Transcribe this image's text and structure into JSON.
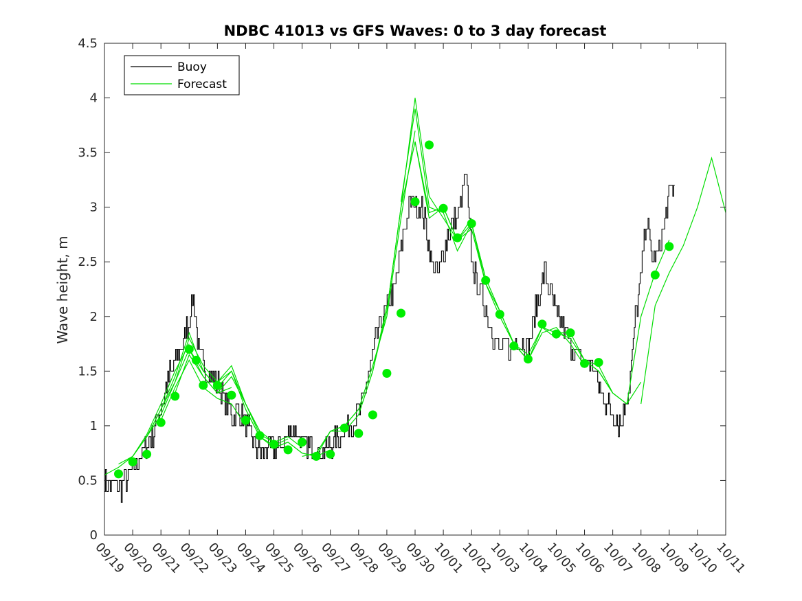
{
  "chart_data": {
    "type": "line",
    "title": "NDBC 41013 vs GFS Waves: 0 to 3 day forecast",
    "xlabel": "",
    "ylabel": "Wave height, m",
    "xlim": [
      0,
      22
    ],
    "ylim": [
      0,
      4.5
    ],
    "x_tick_labels": [
      "09/19",
      "09/20",
      "09/21",
      "09/22",
      "09/23",
      "09/24",
      "09/25",
      "09/26",
      "09/27",
      "09/28",
      "09/29",
      "09/30",
      "10/01",
      "10/02",
      "10/03",
      "10/04",
      "10/05",
      "10/06",
      "10/07",
      "10/08",
      "10/09",
      "10/10",
      "10/11"
    ],
    "y_ticks": [
      0,
      0.5,
      1,
      1.5,
      2,
      2.5,
      3,
      3.5,
      4,
      4.5
    ],
    "y_tick_labels": [
      "0",
      "0.5",
      "1",
      "1.5",
      "2",
      "2.5",
      "3",
      "3.5",
      "4",
      "4.5"
    ],
    "legend": {
      "placement": "top-left",
      "entries": [
        "Buoy",
        "Forecast"
      ]
    },
    "colors": {
      "buoy": "#000000",
      "forecast": "#00dd00",
      "marker": "#00ee00"
    },
    "buoy": {
      "x": [
        0,
        0.3,
        0.5,
        0.7,
        1.0,
        1.2,
        1.5,
        1.8,
        2.0,
        2.2,
        2.5,
        2.8,
        3.0,
        3.15,
        3.3,
        3.5,
        3.7,
        4.0,
        4.3,
        4.5,
        4.8,
        5.0,
        5.3,
        5.5,
        5.8,
        6.0,
        6.3,
        6.6,
        7.0,
        7.3,
        7.6,
        8.0,
        8.3,
        8.6,
        9.0,
        9.3,
        9.6,
        10.0,
        10.3,
        10.6,
        10.8,
        11.0,
        11.2,
        11.4,
        11.6,
        11.8,
        12.0,
        12.2,
        12.5,
        12.8,
        13.0,
        13.3,
        13.6,
        13.8,
        14.0,
        14.2,
        14.4,
        14.6,
        14.8,
        15.0,
        15.3,
        15.6,
        15.8,
        16.0,
        16.3,
        16.6,
        16.8,
        17.0,
        17.3,
        17.6,
        18.0,
        18.3,
        18.6,
        18.8,
        19.0,
        19.1,
        19.2,
        19.4,
        19.6,
        19.8,
        20.0,
        20.2
      ],
      "y": [
        0.5,
        0.45,
        0.4,
        0.5,
        0.6,
        0.7,
        0.8,
        1.0,
        1.15,
        1.4,
        1.6,
        1.75,
        2.0,
        2.2,
        1.7,
        1.55,
        1.45,
        1.4,
        1.2,
        1.1,
        1.15,
        1.0,
        0.85,
        0.75,
        0.8,
        0.75,
        0.85,
        1.0,
        0.85,
        0.8,
        0.75,
        0.8,
        0.9,
        1.0,
        1.1,
        1.4,
        1.8,
        2.1,
        2.3,
        2.8,
        3.0,
        3.05,
        3.0,
        2.8,
        2.5,
        2.4,
        2.6,
        2.8,
        2.9,
        3.3,
        2.5,
        2.2,
        2.0,
        1.8,
        1.7,
        1.75,
        1.65,
        1.8,
        1.75,
        1.7,
        2.1,
        2.4,
        2.2,
        2.0,
        1.85,
        1.7,
        1.65,
        1.6,
        1.55,
        1.3,
        1.1,
        1.0,
        1.4,
        2.0,
        2.4,
        2.7,
        2.9,
        2.5,
        2.6,
        2.8,
        3.1,
        3.2
      ]
    },
    "forecast_runs": [
      {
        "x": [
          0,
          0.5,
          1.0,
          1.5,
          2.0,
          2.5,
          3.0
        ],
        "y": [
          0.55,
          0.62,
          0.72,
          0.92,
          1.2,
          1.5,
          1.75
        ]
      },
      {
        "x": [
          0.5,
          1.0,
          1.5,
          2.0,
          2.5,
          3.0,
          3.5
        ],
        "y": [
          0.65,
          0.72,
          0.9,
          1.15,
          1.4,
          1.8,
          1.55
        ]
      },
      {
        "x": [
          1.0,
          1.5,
          2.0,
          2.5,
          3.0,
          3.5,
          4.0
        ],
        "y": [
          0.72,
          0.9,
          1.15,
          1.45,
          1.85,
          1.5,
          1.35
        ]
      },
      {
        "x": [
          1.5,
          2.0,
          2.5,
          3.0,
          3.5,
          4.0,
          4.5
        ],
        "y": [
          0.9,
          1.1,
          1.4,
          1.7,
          1.45,
          1.3,
          1.35
        ]
      },
      {
        "x": [
          2.0,
          2.5,
          3.0,
          3.5,
          4.0,
          4.5,
          5.0
        ],
        "y": [
          1.05,
          1.35,
          1.6,
          1.35,
          1.25,
          1.2,
          1.0
        ]
      },
      {
        "x": [
          2.5,
          3.0,
          3.5,
          4.0,
          4.5,
          5.0,
          5.5
        ],
        "y": [
          1.3,
          1.65,
          1.45,
          1.3,
          1.45,
          1.2,
          0.95
        ]
      },
      {
        "x": [
          3.0,
          3.5,
          4.0,
          4.5,
          5.0,
          5.5,
          6.0
        ],
        "y": [
          1.7,
          1.5,
          1.35,
          1.5,
          1.2,
          0.95,
          0.85
        ]
      },
      {
        "x": [
          3.5,
          4.0,
          4.5,
          5.0,
          5.5,
          6.0,
          6.5
        ],
        "y": [
          1.55,
          1.4,
          1.5,
          1.15,
          0.9,
          0.82,
          0.88
        ]
      },
      {
        "x": [
          4.0,
          4.5,
          5.0,
          5.5,
          6.0,
          6.5,
          7.0
        ],
        "y": [
          1.4,
          1.55,
          1.2,
          0.92,
          0.85,
          0.9,
          0.8
        ]
      },
      {
        "x": [
          5.0,
          5.5,
          6.0,
          6.5,
          7.0,
          7.5,
          8.0
        ],
        "y": [
          1.15,
          0.9,
          0.8,
          0.85,
          0.75,
          0.72,
          0.78
        ]
      },
      {
        "x": [
          6.0,
          6.5,
          7.0,
          7.5,
          8.0,
          8.5,
          9.0
        ],
        "y": [
          0.8,
          0.85,
          0.75,
          0.72,
          0.95,
          1.0,
          1.15
        ]
      },
      {
        "x": [
          7.0,
          7.5,
          8.0,
          8.5,
          9.0,
          9.5,
          10.0
        ],
        "y": [
          0.72,
          0.75,
          0.95,
          0.95,
          1.1,
          1.5,
          2.1
        ]
      },
      {
        "x": [
          8.0,
          8.5,
          9.0,
          9.5,
          10.0,
          10.5,
          11.0
        ],
        "y": [
          0.95,
          1.0,
          1.15,
          1.55,
          2.0,
          2.9,
          3.7
        ]
      },
      {
        "x": [
          9.0,
          9.5,
          10.0,
          10.5,
          11.0,
          11.5,
          12.0
        ],
        "y": [
          1.1,
          1.5,
          2.05,
          3.0,
          3.6,
          2.9,
          3.0
        ]
      },
      {
        "x": [
          10.0,
          10.5,
          11.0,
          11.5,
          12.0,
          12.5,
          13.0
        ],
        "y": [
          2.05,
          3.0,
          4.0,
          3.1,
          2.9,
          2.7,
          2.9
        ]
      },
      {
        "x": [
          10.5,
          11.0,
          11.5,
          12.0,
          12.5,
          13.0,
          13.5
        ],
        "y": [
          3.05,
          3.9,
          3.0,
          2.95,
          2.6,
          2.85,
          2.35
        ]
      },
      {
        "x": [
          11.0,
          11.5,
          12.0,
          12.5,
          13.0,
          13.5,
          14.0
        ],
        "y": [
          3.6,
          2.95,
          3.0,
          2.7,
          2.85,
          2.3,
          2.0
        ]
      },
      {
        "x": [
          12.0,
          12.5,
          13.0,
          13.5,
          14.0,
          14.5,
          15.0
        ],
        "y": [
          3.0,
          2.7,
          2.8,
          2.3,
          2.05,
          1.75,
          1.6
        ]
      },
      {
        "x": [
          13.0,
          13.5,
          14.0,
          14.5,
          15.0,
          15.5,
          16.0
        ],
        "y": [
          2.85,
          2.35,
          2.05,
          1.75,
          1.65,
          1.9,
          1.8
        ]
      },
      {
        "x": [
          14.0,
          14.5,
          15.0,
          15.5,
          16.0,
          16.5,
          17.0
        ],
        "y": [
          2.0,
          1.75,
          1.6,
          1.85,
          1.9,
          1.75,
          1.55
        ]
      },
      {
        "x": [
          15.0,
          15.5,
          16.0,
          16.5,
          17.0,
          17.5,
          18.0
        ],
        "y": [
          1.6,
          1.9,
          1.85,
          1.8,
          1.6,
          1.5,
          1.3
        ]
      },
      {
        "x": [
          16.0,
          16.5,
          17.0,
          17.5,
          18.0,
          18.5,
          19.0
        ],
        "y": [
          1.85,
          1.85,
          1.6,
          1.5,
          1.3,
          1.2,
          1.4
        ]
      },
      {
        "x": [
          17.0,
          17.5,
          18.0,
          18.5,
          19.0,
          19.5,
          20.0
        ],
        "y": [
          1.6,
          1.55,
          1.3,
          1.2,
          2.0,
          2.4,
          2.7
        ]
      },
      {
        "x": [
          19.0,
          19.5,
          20.0,
          20.5,
          21.0,
          21.5,
          22.0
        ],
        "y": [
          1.2,
          2.1,
          2.4,
          2.65,
          3.0,
          3.45,
          2.95
        ]
      }
    ],
    "markers": {
      "x": [
        0.5,
        1.0,
        1.5,
        2.0,
        2.5,
        3.0,
        3.25,
        3.5,
        4.0,
        4.5,
        5.0,
        5.5,
        6.0,
        6.5,
        7.0,
        7.5,
        8.0,
        8.5,
        9.0,
        9.5,
        10.0,
        10.5,
        11.0,
        11.5,
        12.0,
        12.5,
        13.0,
        13.5,
        14.0,
        14.5,
        15.0,
        15.5,
        16.0,
        16.5,
        17.0,
        17.5,
        18.0,
        18.5,
        19.0,
        19.5,
        20.0
      ],
      "y": [
        0.56,
        0.67,
        0.74,
        1.03,
        1.27,
        1.7,
        1.6,
        1.37,
        1.37,
        1.28,
        1.05,
        0.91,
        0.83,
        0.78,
        0.85,
        0.72,
        0.74,
        0.98,
        0.93,
        1.1,
        1.48,
        2.03,
        3.05,
        3.57,
        2.99,
        2.72,
        2.85,
        2.33,
        2.02,
        1.73,
        1.61,
        1.93,
        1.84,
        1.85,
        1.57,
        1.58,
        null,
        null,
        null,
        2.38,
        2.64
      ]
    }
  }
}
